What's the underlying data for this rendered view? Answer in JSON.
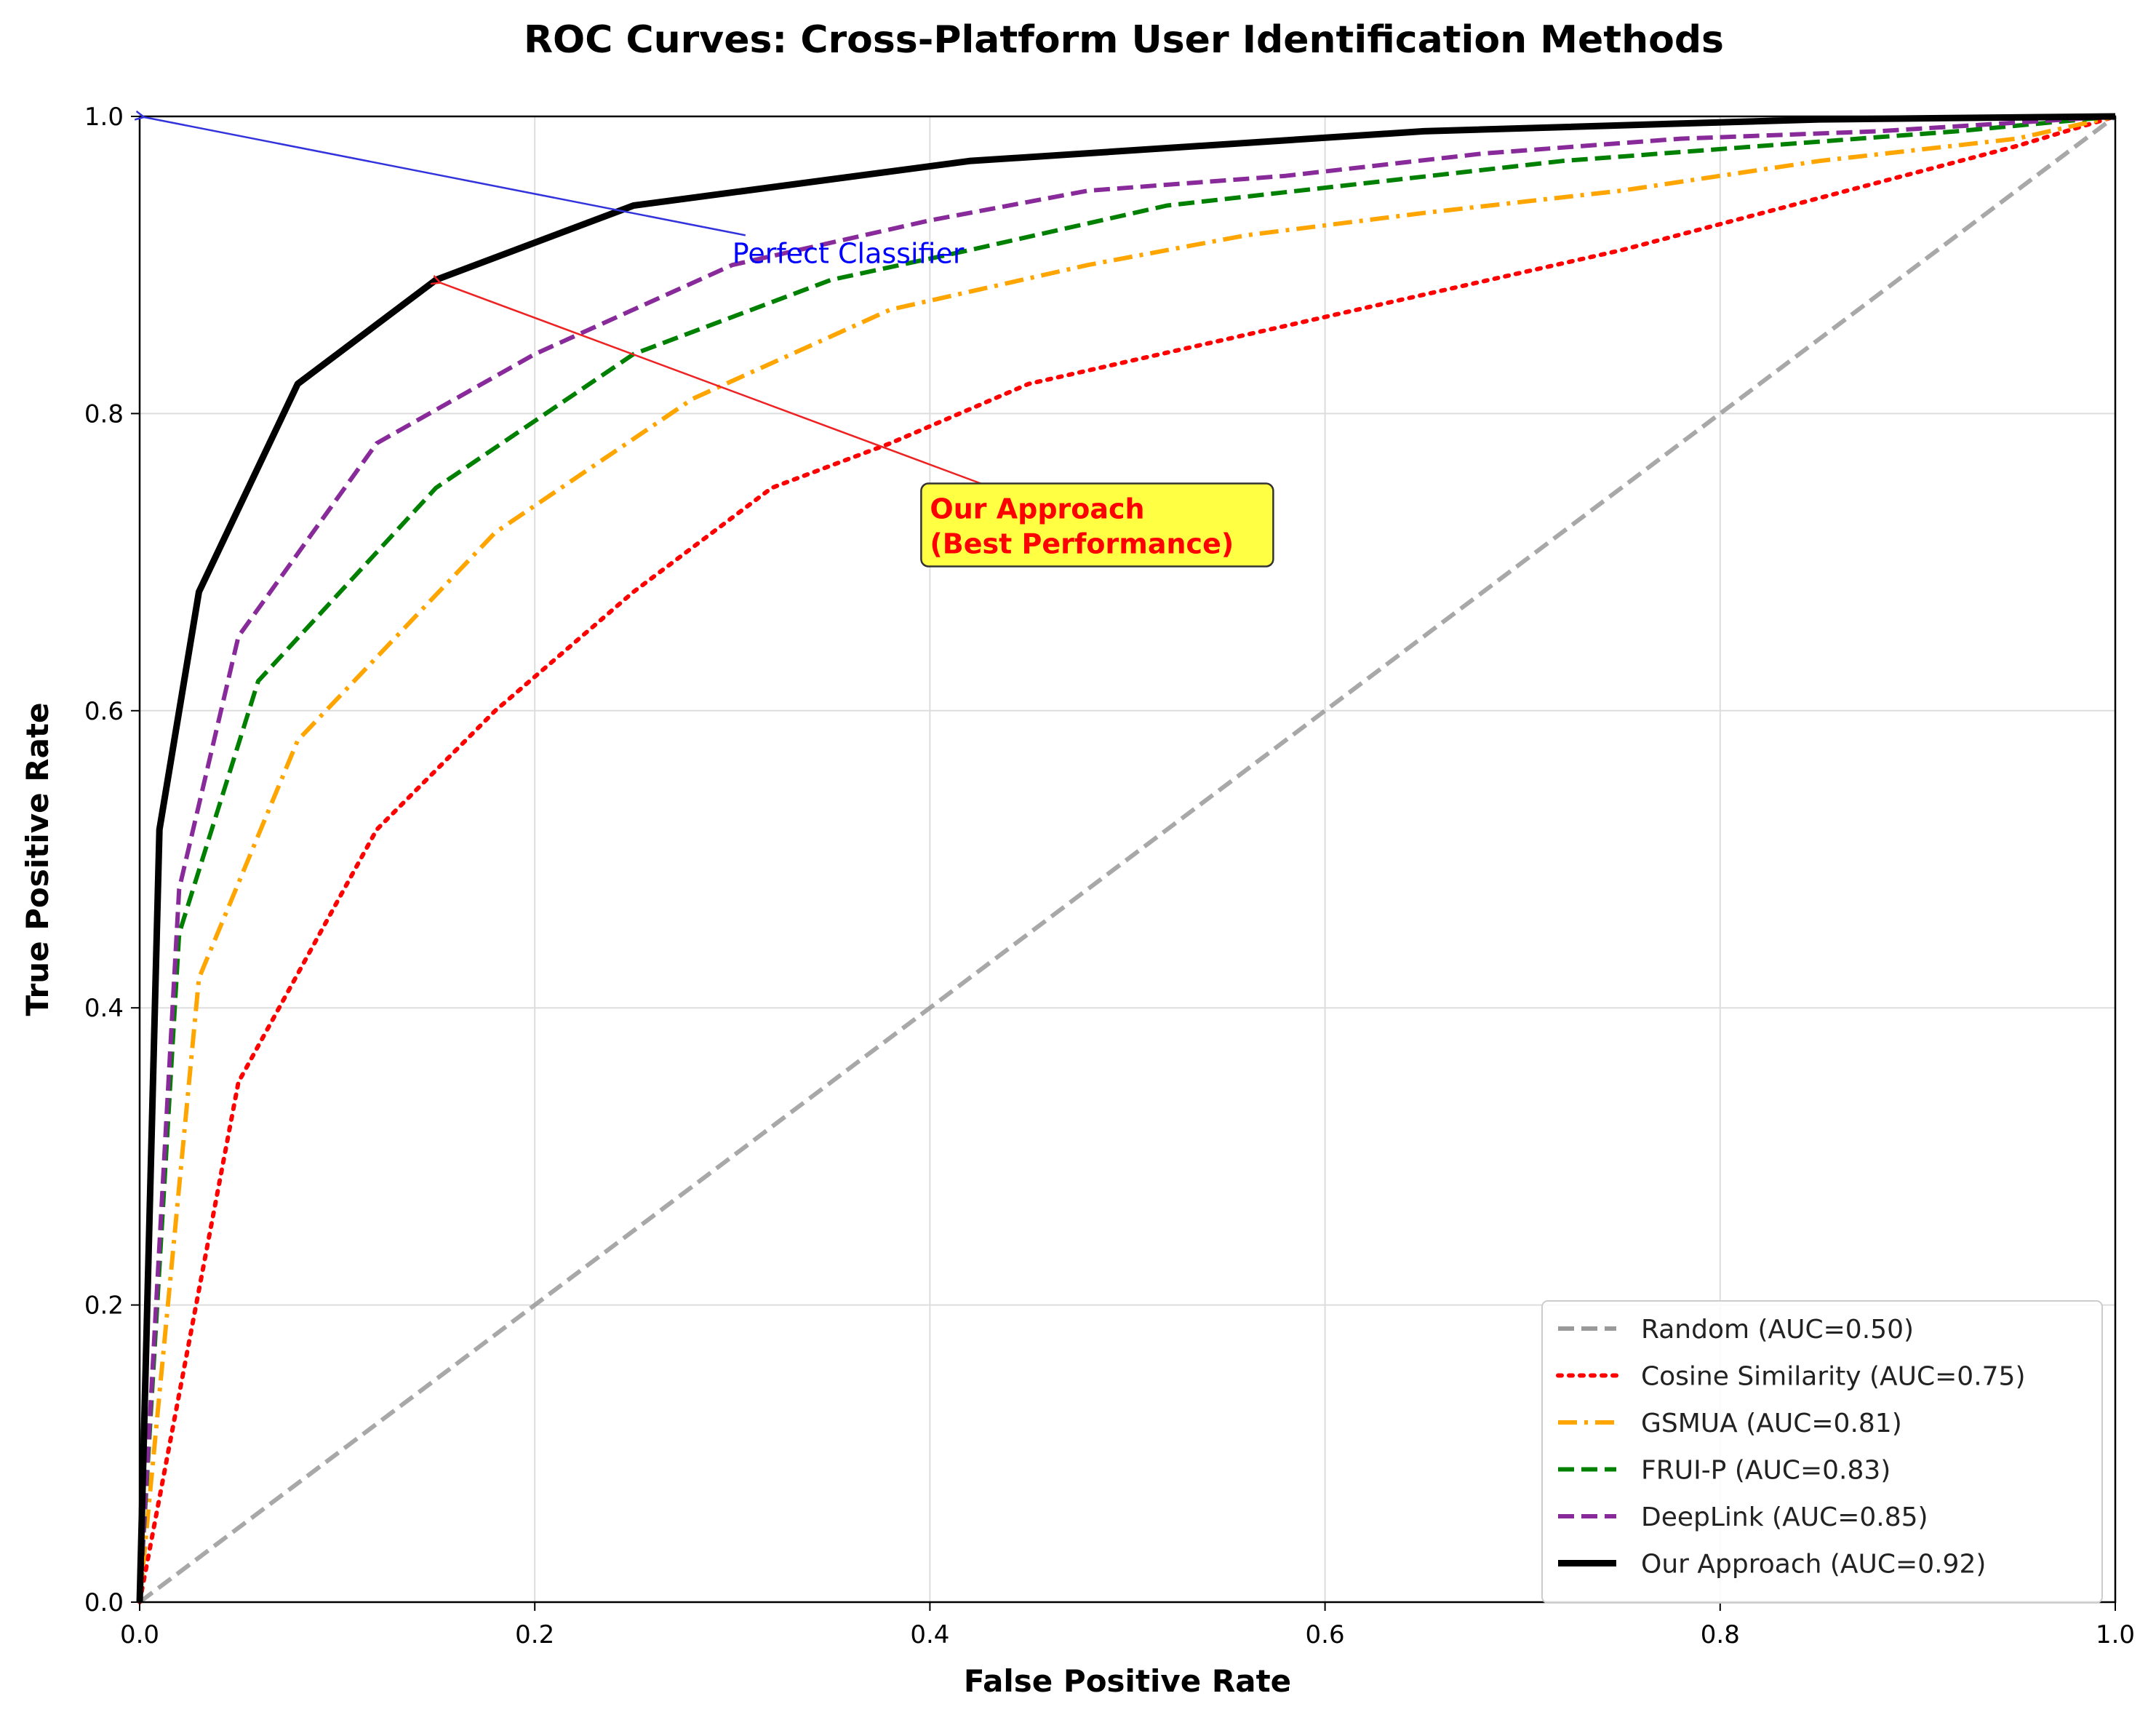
{
  "chart_data": {
    "type": "line",
    "title": "ROC Curves: Cross-Platform User Identification Methods",
    "xlabel": "False Positive Rate",
    "ylabel": "True Positive Rate",
    "xlim": [
      0,
      1
    ],
    "ylim": [
      0,
      1
    ],
    "xticks": [
      "0.0",
      "0.2",
      "0.4",
      "0.6",
      "0.8",
      "1.0"
    ],
    "yticks": [
      "0.0",
      "0.2",
      "0.4",
      "0.6",
      "0.8",
      "1.0"
    ],
    "grid": true,
    "legend_position": "lower-right",
    "series": [
      {
        "name": "Random (AUC=0.50)",
        "color": "#999999",
        "style": "dashed",
        "x": [
          0,
          1
        ],
        "y": [
          0,
          1
        ]
      },
      {
        "name": "Cosine Similarity (AUC=0.75)",
        "color": "#ff0000",
        "style": "dotted",
        "x": [
          0,
          0.05,
          0.12,
          0.18,
          0.25,
          0.32,
          0.38,
          0.45,
          0.55,
          0.65,
          0.75,
          0.85,
          0.95,
          1.0
        ],
        "y": [
          0,
          0.35,
          0.52,
          0.6,
          0.68,
          0.75,
          0.78,
          0.82,
          0.85,
          0.88,
          0.91,
          0.945,
          0.98,
          1.0
        ]
      },
      {
        "name": "GSMUA (AUC=0.81)",
        "color": "#ffa500",
        "style": "dashdot",
        "x": [
          0,
          0.03,
          0.08,
          0.18,
          0.28,
          0.38,
          0.48,
          0.56,
          0.65,
          0.75,
          0.85,
          0.95,
          1.0
        ],
        "y": [
          0,
          0.42,
          0.58,
          0.72,
          0.81,
          0.87,
          0.9,
          0.92,
          0.935,
          0.95,
          0.97,
          0.985,
          1.0
        ]
      },
      {
        "name": "FRUI-P (AUC=0.83)",
        "color": "#008000",
        "style": "dashed",
        "x": [
          0,
          0.02,
          0.06,
          0.15,
          0.25,
          0.35,
          0.42,
          0.52,
          0.62,
          0.72,
          0.82,
          0.92,
          1.0
        ],
        "y": [
          0,
          0.45,
          0.62,
          0.75,
          0.84,
          0.89,
          0.91,
          0.94,
          0.955,
          0.97,
          0.98,
          0.99,
          1.0
        ]
      },
      {
        "name": "DeepLink (AUC=0.85)",
        "color": "#882a9a",
        "style": "dashed",
        "x": [
          0,
          0.02,
          0.05,
          0.12,
          0.2,
          0.3,
          0.4,
          0.48,
          0.58,
          0.68,
          0.78,
          0.88,
          1.0
        ],
        "y": [
          0,
          0.48,
          0.65,
          0.78,
          0.84,
          0.9,
          0.93,
          0.95,
          0.96,
          0.975,
          0.985,
          0.99,
          1.0
        ]
      },
      {
        "name": "Our Approach (AUC=0.92)",
        "color": "#000000",
        "style": "solid",
        "x": [
          0,
          0.01,
          0.03,
          0.08,
          0.15,
          0.25,
          0.42,
          0.65,
          0.85,
          1.0
        ],
        "y": [
          0,
          0.52,
          0.68,
          0.82,
          0.89,
          0.94,
          0.97,
          0.99,
          0.998,
          1.0
        ]
      }
    ],
    "annotations": [
      {
        "text": "Perfect Classifier",
        "color": "#0000ff",
        "text_x": 0.3,
        "text_y": 0.92,
        "arrow_to_x": 0.0,
        "arrow_to_y": 1.0
      },
      {
        "text_lines": [
          "Our Approach",
          "(Best Performance)"
        ],
        "color": "#ff0000",
        "box_color": "#ffff44",
        "text_x": 0.4,
        "text_y": 0.75,
        "arrow_to_x": 0.15,
        "arrow_to_y": 0.89
      }
    ]
  }
}
